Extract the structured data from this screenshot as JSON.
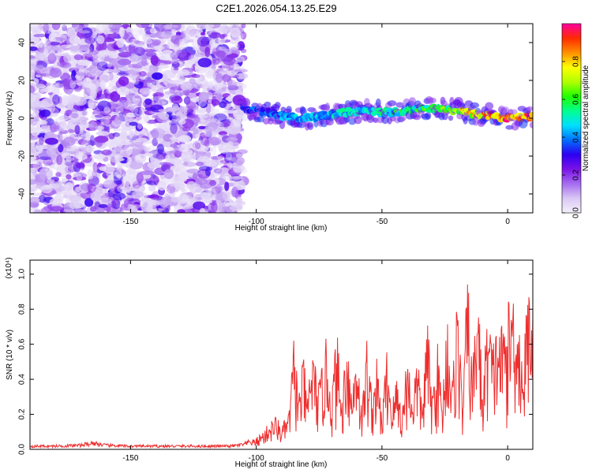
{
  "title": "C2E1.2026.054.13.25.E29",
  "colors": {
    "snr_line": "#ee2e2e",
    "axis": "#000000",
    "colormap_stops": [
      "#f4f0fb",
      "#d9c8f4",
      "#a56cf0",
      "#7b12e8",
      "#2c00f0",
      "#0070ff",
      "#00e0ff",
      "#00ff90",
      "#20ff00",
      "#b0ff00",
      "#ffff00",
      "#ff9000",
      "#ff2a00",
      "#ff00a0"
    ]
  },
  "chart_data": [
    {
      "type": "heatmap",
      "name": "spectrogram",
      "xlabel": "Height of straight line (km)",
      "ylabel": "Frequency (Hz)",
      "xlim": [
        -190,
        10
      ],
      "ylim": [
        -50,
        50
      ],
      "x_ticks": [
        -150,
        -100,
        -50,
        0
      ],
      "x_tick_labels": [
        "-150",
        "-100",
        "-50",
        "0"
      ],
      "y_ticks": [
        -40,
        -20,
        0,
        20,
        40
      ],
      "y_tick_labels": [
        "-40",
        "-20",
        "0",
        "20",
        "40"
      ],
      "colorbar": {
        "label": "Normalized spectral amplitude",
        "range": [
          0,
          1
        ],
        "ticks": [
          0.0,
          0.2,
          0.4,
          0.6,
          0.8
        ],
        "tick_labels": [
          "0.0",
          "0.2",
          "0.4",
          "0.6",
          "0.8"
        ]
      },
      "noise_region_x": [
        -190,
        -105
      ],
      "signal_track": {
        "x": [
          -105,
          -95,
          -85,
          -75,
          -65,
          -55,
          -45,
          -35,
          -25,
          -15,
          -5,
          0,
          10
        ],
        "freq": [
          5,
          3,
          0,
          1,
          3,
          4,
          3,
          5,
          5,
          3,
          1,
          0,
          1
        ],
        "amplitude": [
          0.35,
          0.4,
          0.45,
          0.45,
          0.5,
          0.5,
          0.55,
          0.6,
          0.65,
          0.8,
          0.9,
          0.95,
          0.9
        ]
      },
      "colorbar_label": "Normalized spectral amplitude"
    },
    {
      "type": "line",
      "name": "snr",
      "xlabel": "Height of straight line (km)",
      "ylabel": "SNR (10 * v/v)",
      "scale_label": "(x10⁴)",
      "xlim": [
        -190,
        10
      ],
      "ylim": [
        0,
        1.08
      ],
      "x_ticks": [
        -150,
        -100,
        -50,
        0
      ],
      "x_tick_labels": [
        "-150",
        "-100",
        "-50",
        "0"
      ],
      "y_ticks": [
        0.0,
        0.2,
        0.4,
        0.6,
        0.8,
        1.0
      ],
      "y_tick_labels": [
        "0.0",
        "0.2",
        "0.4",
        "0.6",
        "0.8",
        "1.0"
      ],
      "series": [
        {
          "name": "SNR",
          "x": [
            -190,
            -180,
            -170,
            -165,
            -160,
            -150,
            -140,
            -130,
            -120,
            -110,
            -105,
            -100,
            -97,
            -95,
            -92,
            -90,
            -87,
            -85,
            -83,
            -81,
            -80,
            -78,
            -75,
            -72,
            -70,
            -68,
            -66,
            -64,
            -62,
            -60,
            -58,
            -56,
            -54,
            -52,
            -50,
            -48,
            -46,
            -44,
            -42,
            -40,
            -38,
            -36,
            -34,
            -32,
            -30,
            -28,
            -26,
            -24,
            -22,
            -20,
            -18,
            -16,
            -14,
            -12,
            -10,
            -8,
            -6,
            -4,
            -2,
            0,
            2,
            4,
            6,
            8,
            10
          ],
          "y": [
            0.02,
            0.02,
            0.025,
            0.04,
            0.025,
            0.02,
            0.02,
            0.02,
            0.02,
            0.02,
            0.03,
            0.06,
            0.1,
            0.14,
            0.18,
            0.12,
            0.2,
            0.6,
            0.3,
            0.52,
            0.25,
            0.55,
            0.35,
            0.6,
            0.3,
            0.66,
            0.25,
            0.68,
            0.3,
            0.62,
            0.2,
            0.6,
            0.3,
            0.48,
            0.18,
            0.55,
            0.25,
            0.4,
            0.2,
            0.55,
            0.3,
            0.5,
            0.25,
            0.7,
            0.3,
            0.58,
            0.25,
            0.78,
            0.35,
            0.9,
            0.25,
            0.95,
            0.4,
            0.98,
            0.3,
            0.78,
            0.55,
            0.7,
            0.65,
            0.75,
            0.88,
            0.8,
            0.45,
            0.85,
            1.05
          ]
        }
      ]
    }
  ]
}
